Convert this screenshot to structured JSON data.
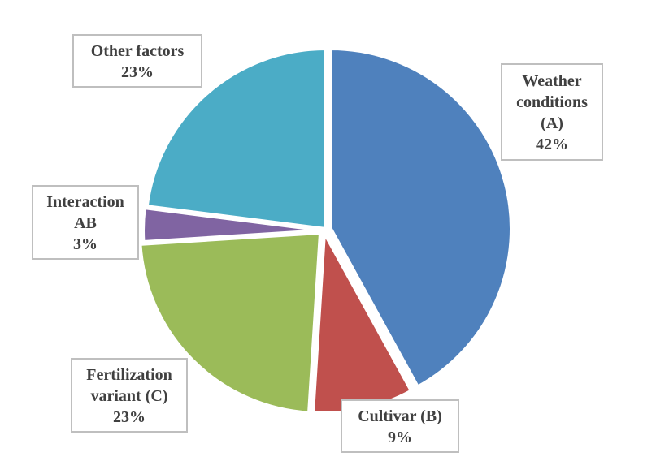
{
  "chart_data": {
    "type": "pie",
    "title": "",
    "start_angle_deg": 0,
    "direction": "clockwise",
    "slices": [
      {
        "name": "Weather conditions (A)",
        "value": 42,
        "label_lines": [
          "Weather",
          "conditions",
          "(A)",
          "42%"
        ],
        "color": "#4f81bd"
      },
      {
        "name": "Cultivar (B)",
        "value": 9,
        "label_lines": [
          "Cultivar (B)",
          "9%"
        ],
        "color": "#c0504d"
      },
      {
        "name": "Fertilization variant (C)",
        "value": 23,
        "label_lines": [
          "Fertilization",
          "variant (C)",
          "23%"
        ],
        "color": "#9bbb59"
      },
      {
        "name": "Interaction AB",
        "value": 3,
        "label_lines": [
          "Interaction",
          "AB",
          "3%"
        ],
        "color": "#8064a2"
      },
      {
        "name": "Other factors",
        "value": 23,
        "label_lines": [
          "Other factors",
          "23%"
        ],
        "color": "#4bacc6"
      }
    ],
    "legend": "none"
  }
}
